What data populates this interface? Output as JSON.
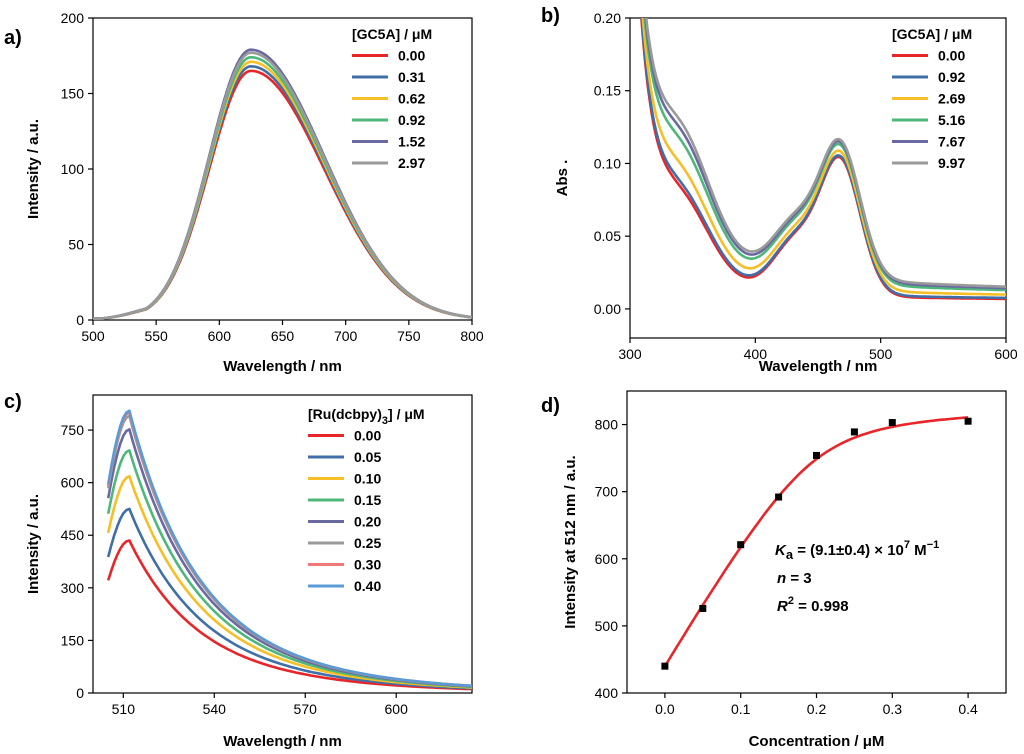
{
  "chart_data": [
    {
      "id": "a",
      "type": "line",
      "panel_label": "a)",
      "xlabel": "Wavelength / nm",
      "ylabel": "Intensity / a.u.",
      "xlim": [
        500,
        800
      ],
      "ylim": [
        0,
        200
      ],
      "xticks": [
        500,
        550,
        600,
        650,
        700,
        750,
        800
      ],
      "yticks": [
        0,
        50,
        100,
        150,
        200
      ],
      "legend_title": "[GC5A] / μM",
      "legend_position": "top-right",
      "shape": "emission_a",
      "series": [
        {
          "name": "0.00",
          "color": "#e8262a",
          "peak": 165
        },
        {
          "name": "0.31",
          "color": "#3f6fa6",
          "peak": 168
        },
        {
          "name": "0.62",
          "color": "#f6bf26",
          "peak": 171
        },
        {
          "name": "0.92",
          "color": "#4db87a",
          "peak": 174
        },
        {
          "name": "1.52",
          "color": "#6a6aa0",
          "peak": 179
        },
        {
          "name": "2.97",
          "color": "#9a9a9a",
          "peak": 177
        }
      ]
    },
    {
      "id": "b",
      "type": "line",
      "panel_label": "b)",
      "xlabel": "Wavelength / nm",
      "ylabel": "Abs .",
      "xlim": [
        300,
        600
      ],
      "ylim": [
        -0.02,
        0.2
      ],
      "xticks": [
        300,
        400,
        500,
        600
      ],
      "yticks": [
        0.0,
        0.05,
        0.1,
        0.15,
        0.2
      ],
      "ytick_labels": [
        "0.00",
        "0.05",
        "0.10",
        "0.15",
        "0.20"
      ],
      "legend_title": "[GC5A] / μM",
      "legend_position": "top-right",
      "shape": "absorbance_b",
      "series": [
        {
          "name": "0.00",
          "color": "#e8262a",
          "k": 0.0
        },
        {
          "name": "0.92",
          "color": "#3f6fa6",
          "k": 0.08
        },
        {
          "name": "2.69",
          "color": "#f6bf26",
          "k": 0.35
        },
        {
          "name": "5.16",
          "color": "#4db87a",
          "k": 0.72
        },
        {
          "name": "7.67",
          "color": "#6a6aa0",
          "k": 0.88
        },
        {
          "name": "9.97",
          "color": "#9a9a9a",
          "k": 1.0
        }
      ]
    },
    {
      "id": "c",
      "type": "line",
      "panel_label": "c)",
      "xlabel": "Wavelength / nm",
      "ylabel": "Intensity / a.u.",
      "xlim": [
        500,
        625
      ],
      "ylim": [
        0,
        850
      ],
      "xticks": [
        510,
        540,
        570,
        600
      ],
      "yticks": [
        0,
        150,
        300,
        450,
        600,
        750
      ],
      "legend_title_main": "[Ru(dcbpy)",
      "legend_title_sub": "3",
      "legend_title_tail": "] / μM",
      "legend_position": "top-right",
      "shape": "emission_c",
      "series": [
        {
          "name": "0.00",
          "color": "#e8262a",
          "peak": 435
        },
        {
          "name": "0.05",
          "color": "#3f6fa6",
          "peak": 525
        },
        {
          "name": "0.10",
          "color": "#f6bf26",
          "peak": 618
        },
        {
          "name": "0.15",
          "color": "#4db87a",
          "peak": 692
        },
        {
          "name": "0.20",
          "color": "#6a6aa0",
          "peak": 752
        },
        {
          "name": "0.25",
          "color": "#9a9a9a",
          "peak": 790
        },
        {
          "name": "0.30",
          "color": "#f07878",
          "peak": 800
        },
        {
          "name": "0.40",
          "color": "#5b9bd5",
          "peak": 805
        }
      ]
    },
    {
      "id": "d",
      "type": "scatter",
      "panel_label": "d)",
      "xlabel": "Concentration / μM",
      "ylabel": "Intensity at 512 nm / a.u.",
      "xlim": [
        -0.05,
        0.45
      ],
      "ylim": [
        400,
        850
      ],
      "xticks": [
        0.0,
        0.1,
        0.2,
        0.3,
        0.4
      ],
      "xtick_labels": [
        "0.0",
        "0.1",
        "0.2",
        "0.3",
        "0.4"
      ],
      "yticks": [
        400,
        500,
        600,
        700,
        800
      ],
      "points": [
        {
          "x": 0.0,
          "y": 440
        },
        {
          "x": 0.05,
          "y": 526
        },
        {
          "x": 0.1,
          "y": 621
        },
        {
          "x": 0.15,
          "y": 692
        },
        {
          "x": 0.2,
          "y": 754
        },
        {
          "x": 0.25,
          "y": 789
        },
        {
          "x": 0.3,
          "y": 803
        },
        {
          "x": 0.4,
          "y": 805
        }
      ],
      "fit_color": "#e8262a",
      "point_color": "#000000",
      "fit": {
        "I0": 440,
        "Imax": 830,
        "Ka": 91000000.0
      },
      "annotations": {
        "ka_symbol": "K",
        "ka_sub": "a",
        "ka_value": " = (9.1±0.4) × 10",
        "ka_exp": "7",
        "ka_unit": " M",
        "ka_unit_exp": "−1",
        "n_symbol": "n",
        "n_value": " = 3",
        "r2_symbol": "R",
        "r2_exp": "2",
        "r2_value": " = 0.998"
      }
    }
  ]
}
